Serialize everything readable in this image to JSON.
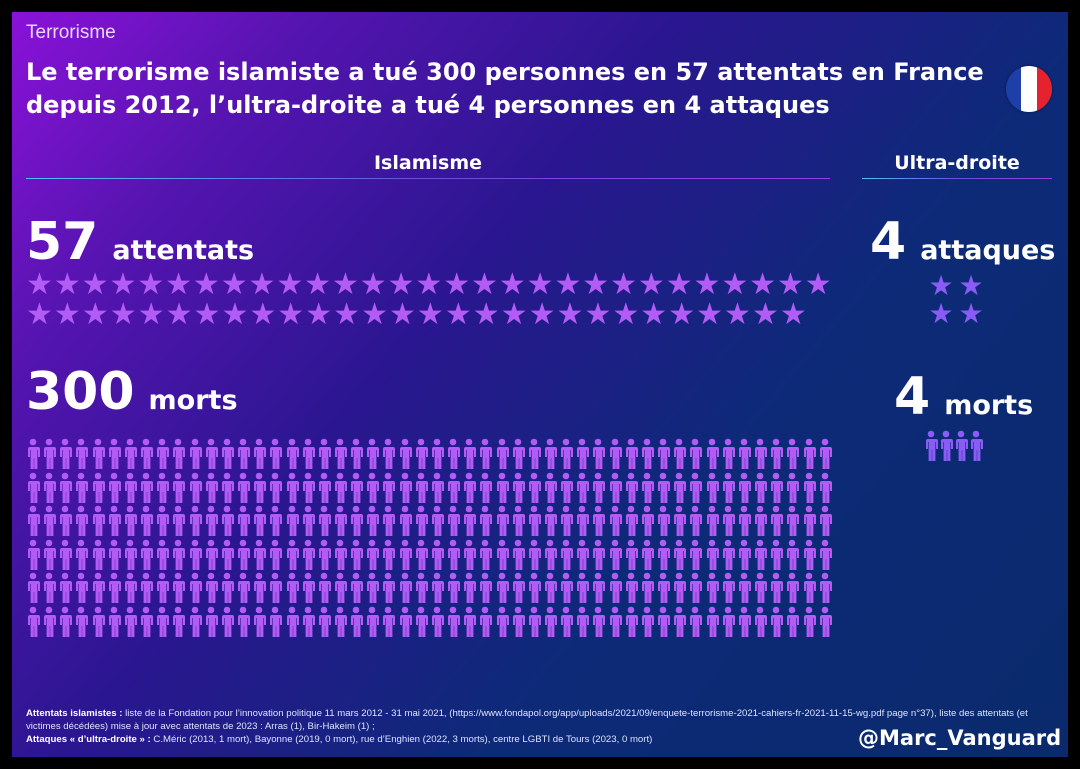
{
  "header": {
    "kicker": "Terrorisme",
    "title": "Le terrorisme islamiste a tué 300 personnes en 57 attentats en France depuis 2012, l’ultra-droite a tué 4 personnes en 4 attaques",
    "flag_icon": "france-flag-icon",
    "flag_colors": [
      "#1f3fa8",
      "#ffffff",
      "#e5232e"
    ]
  },
  "islamisme": {
    "heading": "Islamisme",
    "attacks_count": "57",
    "attacks_label": "attentats",
    "attacks_value": 57,
    "deaths_count": "300",
    "deaths_label": "morts",
    "deaths_value": 300,
    "icon_color": "#b35cf5"
  },
  "ultra_droite": {
    "heading": "Ultra-droite",
    "attacks_count": "4",
    "attacks_label": "attaques",
    "attacks_value": 4,
    "deaths_count": "4",
    "deaths_label": "morts",
    "deaths_value": 4,
    "icon_color": "#8a5cf5"
  },
  "footer": {
    "line1_label": "Attentats islamistes :",
    "line1_text": " liste de la Fondation pour l’innovation politique 11 mars 2012 - 31 mai 2021, (https://www.fondapol.org/app/uploads/2021/09/enquete-terrorisme-2021-cahiers-fr-2021-11-15-wg.pdf page n°37), liste des attentats (et victimes décédées) mise à jour avec attentats de 2023 : Arras (1), Bir-Hakeim (1) ;",
    "line2_label": "Attaques « d’ultra-droite » :",
    "line2_text": " C.Méric (2013, 1 mort), Bayonne (2019, 0 mort), rue d’Enghien (2022, 3 morts), centre LGBTI de Tours (2023, 0 mort)",
    "handle": "@Marc_Vanguard"
  }
}
